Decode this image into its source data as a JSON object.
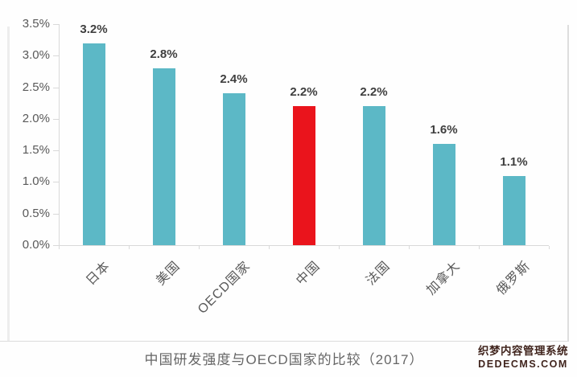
{
  "chart_data": {
    "type": "bar",
    "title": "中国研发强度与OECD国家的比较（2017）",
    "categories": [
      "日本",
      "美国",
      "OECD国家",
      "中国",
      "法国",
      "加拿大",
      "俄罗斯"
    ],
    "values": [
      3.2,
      2.8,
      2.4,
      2.2,
      2.2,
      1.6,
      1.1
    ],
    "value_labels": [
      "3.2%",
      "2.8%",
      "2.4%",
      "2.2%",
      "2.2%",
      "1.6%",
      "1.1%"
    ],
    "highlight_index": 3,
    "bar_color": "#5cb8c6",
    "highlight_color": "#ea141c",
    "xlabel": "",
    "ylabel": "",
    "ylim": [
      0,
      3.5
    ],
    "ytick_step": 0.5,
    "ytick_labels": [
      "3.5%",
      "3.0%",
      "2.5%",
      "2.0%",
      "1.5%",
      "1.0%",
      "0.5%",
      "0.0%"
    ],
    "grid": false,
    "legend": null,
    "value_label_color": "#3f3f3f",
    "axis_label_color": "#595959"
  },
  "watermark": {
    "line1": "织梦内容管理系统",
    "line2": "DEDECMS.COM"
  }
}
